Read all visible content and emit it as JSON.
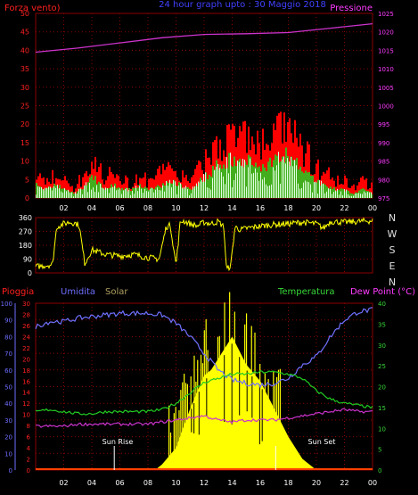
{
  "top_panel": {
    "left_label": "Forza vento)",
    "center_label": "24 hour graph upto :  30 Maggio 2018",
    "right_label": "Pressione"
  },
  "direction_panel": {
    "compass_letters": [
      "N",
      "W",
      "S",
      "E",
      "N"
    ]
  },
  "bottom_panel": {
    "pioggia_label": "Pioggia",
    "umidita_label": "Umidita",
    "solar_label": "Solar",
    "temp_label": "Temperatura",
    "dew_label": "Dew Point (°C)",
    "sun_rise_label": "Sun Rise",
    "sun_set_label": "Sun Set"
  },
  "colors": {
    "background": "#000000",
    "grid": "#8b0000",
    "axis_red": "#ff2020",
    "axis_magenta": "#ff3cff",
    "axis_blue": "#6e6eff",
    "axis_green": "#37d837",
    "wind_gust": "#ff0000",
    "wind_avg": "#22cc22",
    "wind_speed": "#e0ffe0",
    "pressure": "#cc33cc",
    "direction": "#ffff00",
    "humidity": "#7070ff",
    "temperature": "#22cc22",
    "dew": "#cc33cc",
    "solar": "#ffff00",
    "rain": "#ff4000"
  },
  "chart_data": [
    {
      "type": "area",
      "name": "wind-pressure",
      "x_ticks": [
        "02",
        "04",
        "06",
        "08",
        "10",
        "12",
        "14",
        "16",
        "18",
        "20",
        "22",
        "00"
      ],
      "ylim_left": [
        0,
        50
      ],
      "yticks_left": [
        0,
        5,
        10,
        15,
        20,
        25,
        30,
        35,
        40,
        45,
        50
      ],
      "ylim_right": [
        975,
        1025
      ],
      "yticks_right": [
        975,
        980,
        985,
        990,
        995,
        1000,
        1005,
        1010,
        1015,
        1020,
        1025
      ],
      "series": [
        {
          "name": "Forza vento",
          "values": [
            3,
            2,
            3,
            2,
            1,
            3,
            5,
            2,
            3,
            2,
            2,
            3,
            2,
            3,
            4,
            3,
            2,
            4,
            6,
            8,
            9,
            8,
            9,
            7,
            8,
            9,
            10,
            8,
            6,
            4,
            3,
            2,
            2,
            1,
            2,
            1
          ]
        },
        {
          "name": "Pressione",
          "x": [
            0,
            3,
            6,
            9,
            12,
            15,
            18,
            21,
            24
          ],
          "values": [
            1014.5,
            1015.6,
            1017.0,
            1018.4,
            1019.3,
            1019.5,
            1019.8,
            1021.0,
            1022.2
          ]
        }
      ]
    },
    {
      "type": "line",
      "name": "wind-direction",
      "ylim": [
        0,
        360
      ],
      "yticks": [
        0,
        90,
        180,
        270,
        360
      ],
      "x": [
        0,
        1.2,
        1.5,
        2.0,
        2.4,
        2.8,
        3.1,
        3.5,
        4.0,
        5.0,
        6.0,
        7.0,
        8.0,
        8.8,
        9.3,
        9.6,
        10.0,
        10.3,
        10.5,
        11.0,
        11.5,
        12.0,
        12.5,
        13.0,
        13.4,
        13.6,
        13.9,
        14.2,
        14.6,
        15.0,
        16.0,
        17.0,
        18.0,
        19.0,
        20.0,
        20.5,
        21.0,
        22.0,
        23.0,
        24.0
      ],
      "values": [
        40,
        55,
        300,
        320,
        330,
        325,
        310,
        60,
        150,
        120,
        110,
        120,
        100,
        90,
        300,
        310,
        50,
        330,
        340,
        320,
        305,
        330,
        320,
        335,
        300,
        20,
        50,
        300,
        280,
        290,
        305,
        315,
        320,
        330,
        320,
        290,
        335,
        330,
        335,
        340
      ]
    },
    {
      "type": "line",
      "name": "weather",
      "ylim_humidity": [
        0,
        100
      ],
      "yticks_humidity": [
        0,
        10,
        20,
        30,
        40,
        50,
        60,
        70,
        80,
        90,
        100
      ],
      "ylim_rain": [
        0,
        30
      ],
      "yticks_rain": [
        0,
        2,
        4,
        6,
        8,
        10,
        12,
        14,
        16,
        18,
        20,
        22,
        24,
        26,
        28,
        30
      ],
      "ylim_temp": [
        0,
        40
      ],
      "yticks_temp": [
        0,
        5,
        10,
        15,
        20,
        25,
        30,
        35,
        40
      ],
      "series": [
        {
          "name": "Umidita",
          "x": [
            0,
            1,
            2,
            3,
            4,
            5,
            6,
            7,
            8,
            9,
            10,
            11,
            12,
            13,
            14,
            15,
            16,
            17,
            18,
            19,
            20,
            21,
            22,
            23,
            24
          ],
          "values": [
            86,
            89,
            89,
            91,
            92,
            93,
            94,
            94,
            94,
            93,
            88,
            80,
            70,
            60,
            54,
            52,
            51,
            52,
            55,
            63,
            68,
            80,
            90,
            95,
            96
          ]
        },
        {
          "name": "Temperatura",
          "x": [
            0,
            1,
            2,
            3,
            4,
            5,
            6,
            7,
            8,
            9,
            10,
            11,
            12,
            13,
            14,
            15,
            16,
            17,
            18,
            19,
            20,
            21,
            22,
            23,
            24
          ],
          "values": [
            14,
            14.5,
            14,
            13.5,
            13.5,
            14,
            14,
            14,
            14,
            14.5,
            16,
            18.5,
            21,
            22,
            23,
            23,
            23.5,
            23.5,
            23,
            22,
            19,
            17,
            16,
            15.5,
            15
          ]
        },
        {
          "name": "Dew Point",
          "x": [
            0,
            1,
            2,
            3,
            4,
            5,
            6,
            7,
            8,
            9,
            10,
            11,
            12,
            13,
            14,
            15,
            16,
            17,
            18,
            19,
            20,
            21,
            22,
            23,
            24
          ],
          "values": [
            10.5,
            10.5,
            10.5,
            11,
            11,
            11,
            11,
            11,
            11,
            11.5,
            12,
            12.5,
            13,
            12,
            11.5,
            12,
            12,
            12,
            12.5,
            13,
            13.5,
            14,
            14.5,
            14,
            14
          ]
        },
        {
          "name": "Solar",
          "x": [
            8.5,
            9,
            10,
            11,
            12,
            12.5,
            13,
            13.5,
            14,
            15,
            16,
            17,
            18,
            19,
            20
          ],
          "values": [
            0,
            1,
            4,
            11,
            17,
            18,
            20,
            22,
            24,
            19,
            16,
            11,
            6,
            2,
            0
          ]
        },
        {
          "name": "Pioggia",
          "x": [
            0,
            24
          ],
          "values": [
            0,
            0
          ]
        }
      ]
    }
  ]
}
